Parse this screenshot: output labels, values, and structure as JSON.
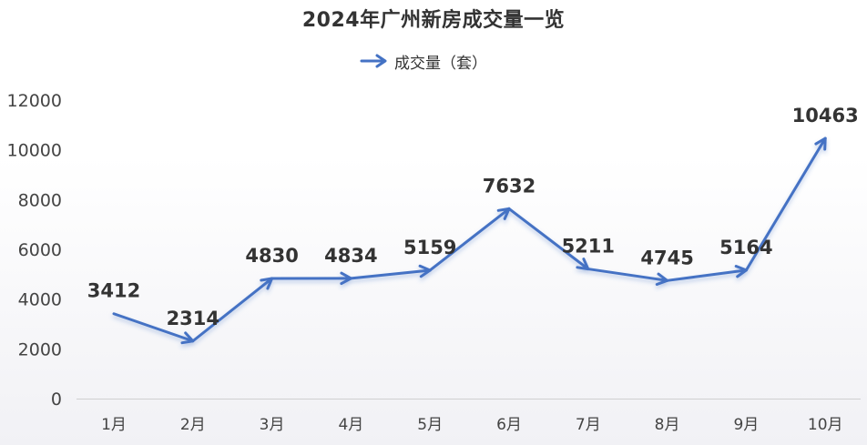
{
  "chart_data": {
    "type": "line",
    "title": "2024年广州新房成交量一览",
    "categories": [
      "1月",
      "2月",
      "3月",
      "4月",
      "5月",
      "6月",
      "7月",
      "8月",
      "9月",
      "10月"
    ],
    "series": [
      {
        "name": "成交量（套）",
        "values": [
          3412,
          2314,
          4830,
          4834,
          5159,
          7632,
          5211,
          4745,
          5164,
          10463
        ],
        "color": "#4472C4"
      }
    ],
    "ylim": [
      0,
      12000
    ],
    "yticks": [
      "0",
      "2000",
      "4000",
      "6000",
      "8000",
      "10000",
      "12000"
    ],
    "xlabel": "",
    "ylabel": "",
    "grid": false,
    "legend": "top-center",
    "data_labels": true,
    "markers": "arrows"
  }
}
